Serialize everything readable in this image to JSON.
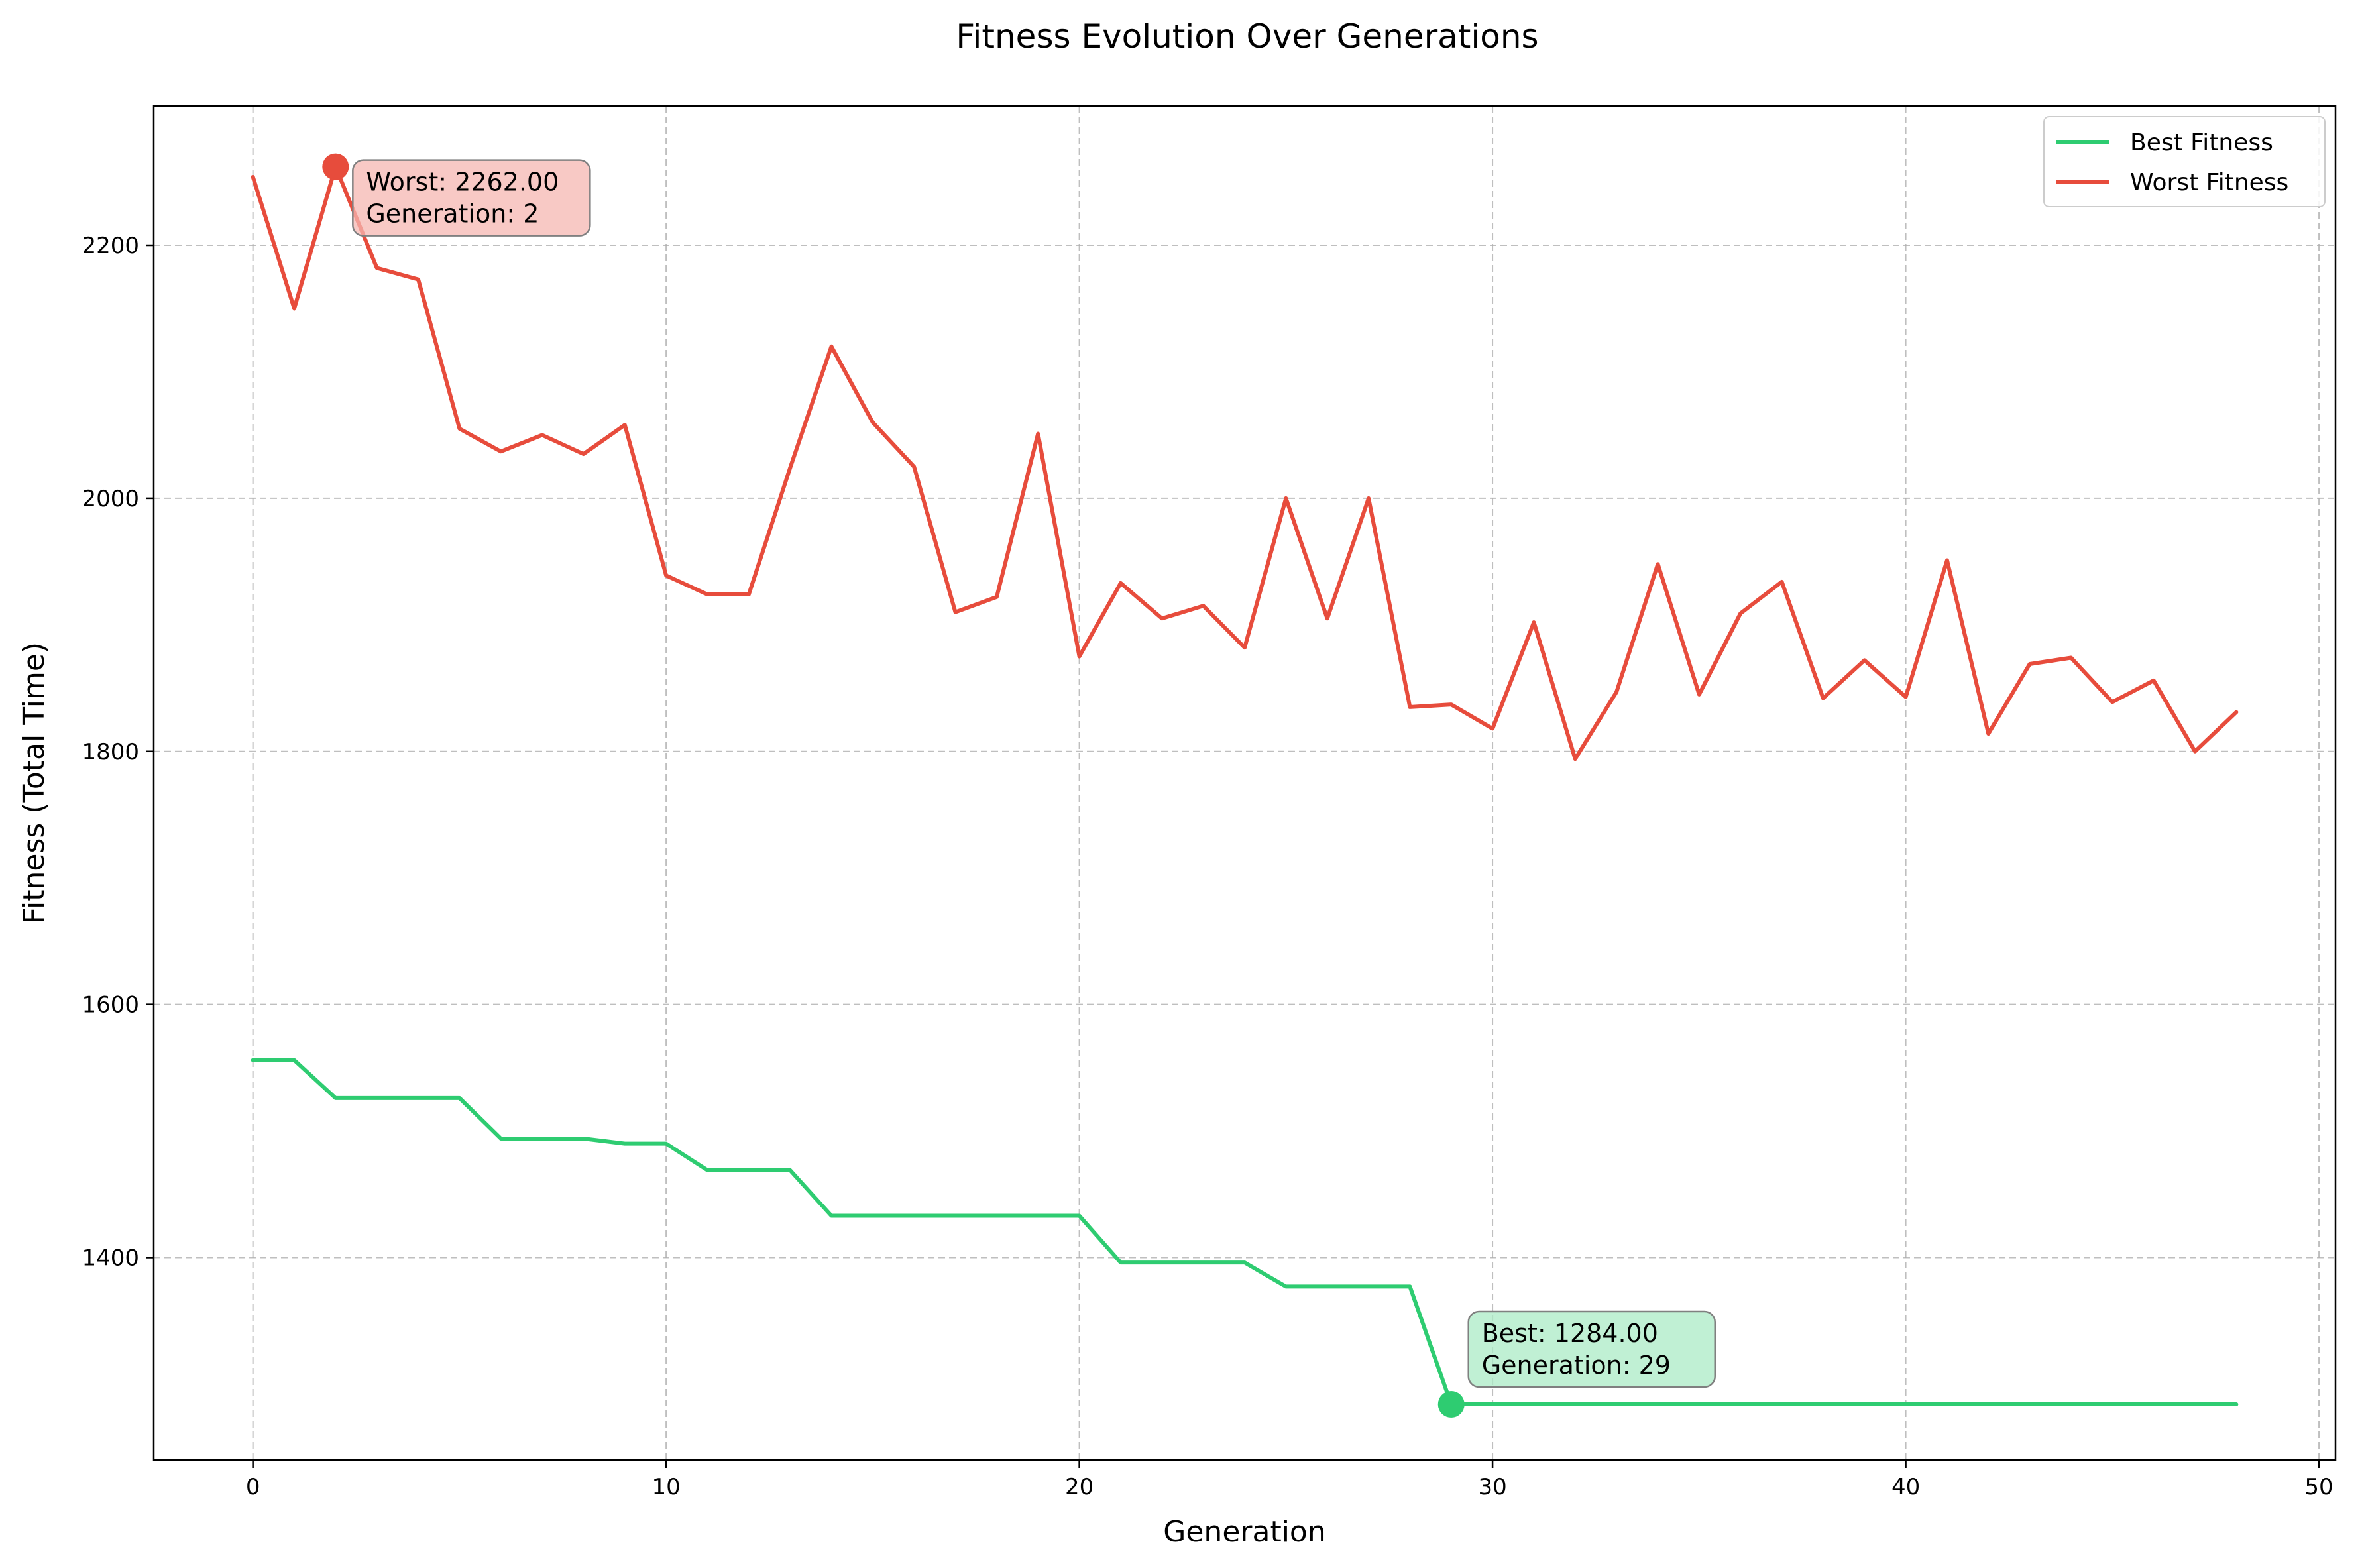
{
  "chart_data": {
    "type": "line",
    "title": "Fitness Evolution Over Generations",
    "xlabel": "Generation",
    "ylabel": "Fitness (Total Time)",
    "xlim": [
      -2.4,
      50.4
    ],
    "ylim": [
      1240,
      2310
    ],
    "xticks": [
      0,
      10,
      20,
      30,
      40,
      50
    ],
    "yticks": [
      1400,
      1600,
      1800,
      2000,
      2200
    ],
    "grid": true,
    "grid_style": "dashed",
    "legend_position": "top-right",
    "x": [
      0,
      1,
      2,
      3,
      4,
      5,
      6,
      7,
      8,
      9,
      10,
      11,
      12,
      13,
      14,
      15,
      16,
      17,
      18,
      19,
      20,
      21,
      22,
      23,
      24,
      25,
      26,
      27,
      28,
      29,
      30,
      31,
      32,
      33,
      34,
      35,
      36,
      37,
      38,
      39,
      40,
      41,
      42,
      43,
      44,
      45,
      46,
      47,
      48
    ],
    "series": [
      {
        "name": "Best Fitness",
        "color": "#2ecc71",
        "values": [
          1556,
          1556,
          1526,
          1526,
          1526,
          1526,
          1494,
          1494,
          1494,
          1490,
          1490,
          1469,
          1469,
          1469,
          1433,
          1433,
          1433,
          1433,
          1433,
          1433,
          1433,
          1396,
          1396,
          1396,
          1396,
          1377,
          1377,
          1377,
          1377,
          1284,
          1284,
          1284,
          1284,
          1284,
          1284,
          1284,
          1284,
          1284,
          1284,
          1284,
          1284,
          1284,
          1284,
          1284,
          1284,
          1284,
          1284,
          1284,
          1284
        ]
      },
      {
        "name": "Worst Fitness",
        "color": "#e74c3c",
        "values": [
          2254,
          2150,
          2262,
          2182,
          2173,
          2055,
          2037,
          2050,
          2035,
          2058,
          1939,
          1924,
          1924,
          2024,
          2120,
          2060,
          2025,
          1910,
          1922,
          2051,
          1875,
          1933,
          1905,
          1915,
          1882,
          2000,
          1905,
          2000,
          1835,
          1837,
          1818,
          1902,
          1794,
          1847,
          1948,
          1845,
          1909,
          1934,
          1842,
          1872,
          1843,
          1951,
          1814,
          1869,
          1874,
          1839,
          1856,
          1800,
          1831
        ]
      }
    ],
    "annotations": [
      {
        "series": "Worst Fitness",
        "x": 2,
        "y": 2262,
        "line1": "Worst: 2262.00",
        "line2": "Generation: 2",
        "fill": "#f5b7b1",
        "marker_color": "#e74c3c"
      },
      {
        "series": "Best Fitness",
        "x": 29,
        "y": 1284,
        "line1": "Best: 1284.00",
        "line2": "Generation: 29",
        "fill": "#abebc6",
        "marker_color": "#2ecc71"
      }
    ]
  }
}
